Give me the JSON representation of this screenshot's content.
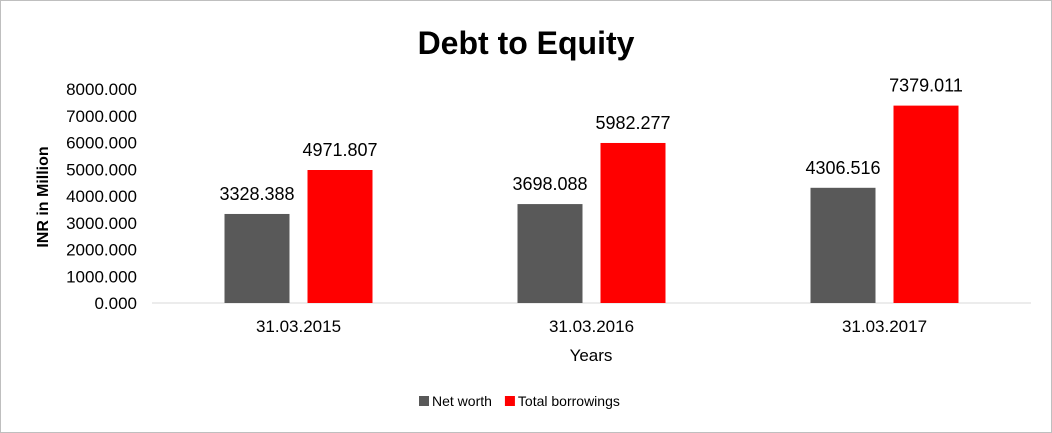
{
  "chart_data": {
    "type": "bar",
    "title": "Debt to Equity",
    "xlabel": "Years",
    "ylabel": "INR in Million",
    "categories": [
      "31.03.2015",
      "31.03.2016",
      "31.03.2017"
    ],
    "series": [
      {
        "name": "Net worth",
        "color": "#595959",
        "values": [
          3328.388,
          3698.088,
          4306.516
        ],
        "labels": [
          "3328.388",
          "3698.088",
          "4306.516"
        ]
      },
      {
        "name": "Total borrowings",
        "color": "#ff0000",
        "values": [
          4971.807,
          5982.277,
          7379.011
        ],
        "labels": [
          "4971.807",
          "5982.277",
          "7379.011"
        ]
      }
    ],
    "ylim": [
      0,
      8000
    ],
    "yticks": [
      "0.000",
      "1000.000",
      "2000.000",
      "3000.000",
      "4000.000",
      "5000.000",
      "6000.000",
      "7000.000",
      "8000.000"
    ],
    "grid": false,
    "legend": "bottom"
  }
}
